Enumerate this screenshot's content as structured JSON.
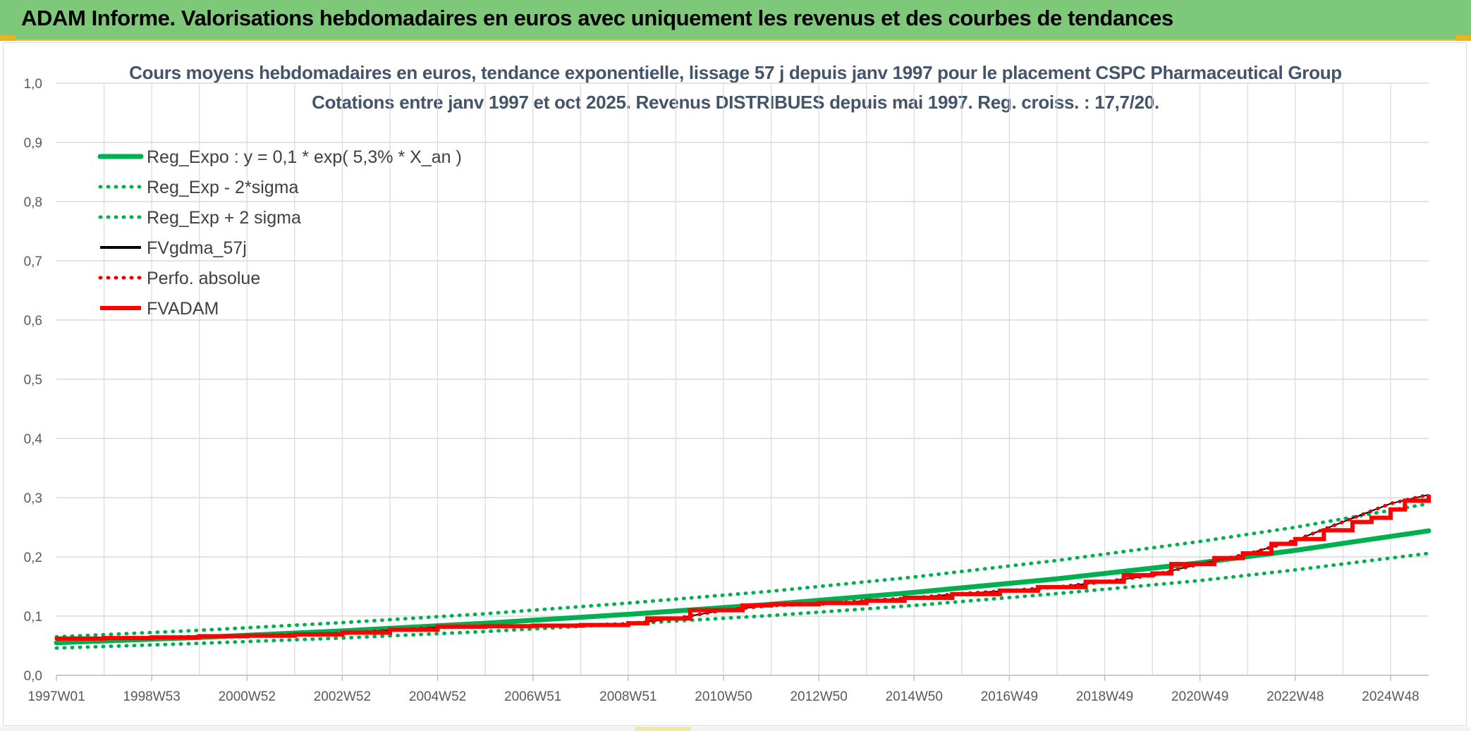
{
  "header": {
    "title": "ADAM Informe. Valorisations hebdomadaires en euros avec uniquement les revenus et des courbes de tendances"
  },
  "colors": {
    "banner": "#7ec87a",
    "trend": "#00b050",
    "fvadam": "#ff0000",
    "fvgdma": "#000000",
    "perfo": "#e00000",
    "grid": "#d9d9d9",
    "title_text": "#44546a"
  },
  "chart_data": {
    "type": "line",
    "title": "Cours moyens hebdomadaires en euros, tendance exponentielle, lissage 57 j depuis janv 1997 pour le placement CSPC Pharmaceutical Group",
    "subtitle": "Cotations entre janv 1997 et oct 2025. Revenus DISTRIBUES depuis mai 1997. Reg. croiss. : 17,7/20.",
    "xlabel": "",
    "ylabel": "",
    "ylim": [
      0,
      1
    ],
    "xlim": [
      1997.0,
      2025.8
    ],
    "grid": true,
    "legend_position": "top-left",
    "y_ticks": [
      "0,0",
      "0,1",
      "0,2",
      "0,3",
      "0,4",
      "0,5",
      "0,6",
      "0,7",
      "0,8",
      "0,9",
      "1,0"
    ],
    "x_ticks": [
      {
        "label": "1997W01",
        "x": 1997.0
      },
      {
        "label": "1998W53",
        "x": 1999.0
      },
      {
        "label": "2000W52",
        "x": 2001.0
      },
      {
        "label": "2002W52",
        "x": 2003.0
      },
      {
        "label": "2004W52",
        "x": 2005.0
      },
      {
        "label": "2006W51",
        "x": 2007.0
      },
      {
        "label": "2008W51",
        "x": 2009.0
      },
      {
        "label": "2010W50",
        "x": 2011.0
      },
      {
        "label": "2012W50",
        "x": 2013.0
      },
      {
        "label": "2014W50",
        "x": 2015.0
      },
      {
        "label": "2016W49",
        "x": 2017.0
      },
      {
        "label": "2018W49",
        "x": 2019.0
      },
      {
        "label": "2020W49",
        "x": 2021.0
      },
      {
        "label": "2022W48",
        "x": 2023.0
      },
      {
        "label": "2024W48",
        "x": 2025.0
      }
    ],
    "series": [
      {
        "name": "Reg_Expo : y = 0,1 * exp( 5,3% *  X_an )",
        "style": "solid-thick",
        "color": "#00b050",
        "x": [
          1997.0,
          2000.0,
          2003.0,
          2006.0,
          2009.0,
          2012.0,
          2015.0,
          2018.0,
          2021.0,
          2023.0,
          2025.8
        ],
        "y": [
          0.055,
          0.064,
          0.075,
          0.088,
          0.103,
          0.12,
          0.14,
          0.163,
          0.19,
          0.211,
          0.244
        ]
      },
      {
        "name": "Reg_Exp - 2*sigma",
        "style": "dotted",
        "color": "#00b050",
        "x": [
          1997.0,
          2000.0,
          2003.0,
          2006.0,
          2009.0,
          2012.0,
          2015.0,
          2018.0,
          2021.0,
          2023.0,
          2025.8
        ],
        "y": [
          0.046,
          0.054,
          0.063,
          0.074,
          0.087,
          0.101,
          0.118,
          0.138,
          0.16,
          0.178,
          0.206
        ]
      },
      {
        "name": "Reg_Exp + 2 sigma",
        "style": "dotted",
        "color": "#00b050",
        "x": [
          1997.0,
          2000.0,
          2003.0,
          2006.0,
          2009.0,
          2012.0,
          2015.0,
          2018.0,
          2021.0,
          2023.0,
          2025.8
        ],
        "y": [
          0.065,
          0.076,
          0.089,
          0.104,
          0.122,
          0.142,
          0.166,
          0.194,
          0.226,
          0.25,
          0.29
        ]
      },
      {
        "name": "FVgdma_57j",
        "style": "solid",
        "color": "#000000",
        "x": [
          1997.0,
          1999.0,
          2001.0,
          2003.0,
          2005.0,
          2007.0,
          2009.0,
          2010.0,
          2011.0,
          2012.0,
          2013.0,
          2014.0,
          2015.0,
          2016.0,
          2017.0,
          2018.0,
          2019.0,
          2020.0,
          2021.0,
          2022.0,
          2023.0,
          2024.0,
          2025.0,
          2025.8
        ],
        "y": [
          0.062,
          0.064,
          0.067,
          0.071,
          0.081,
          0.083,
          0.087,
          0.096,
          0.11,
          0.118,
          0.12,
          0.126,
          0.131,
          0.138,
          0.143,
          0.149,
          0.158,
          0.169,
          0.188,
          0.205,
          0.228,
          0.259,
          0.29,
          0.305
        ]
      },
      {
        "name": "Perfo. absolue",
        "style": "dotted",
        "color": "#e00000",
        "x": [
          1997.0,
          1999.0,
          2001.0,
          2003.0,
          2005.0,
          2007.0,
          2009.0,
          2010.0,
          2011.0,
          2012.0,
          2013.0,
          2014.0,
          2015.0,
          2016.0,
          2017.0,
          2018.0,
          2019.0,
          2020.0,
          2021.0,
          2022.0,
          2023.0,
          2024.0,
          2025.0,
          2025.8
        ],
        "y": [
          0.062,
          0.064,
          0.067,
          0.071,
          0.081,
          0.083,
          0.087,
          0.096,
          0.11,
          0.118,
          0.12,
          0.126,
          0.131,
          0.138,
          0.143,
          0.149,
          0.158,
          0.169,
          0.188,
          0.205,
          0.228,
          0.259,
          0.29,
          0.305
        ]
      },
      {
        "name": "FVADAM",
        "style": "step-thick",
        "color": "#ff0000",
        "x": [
          1997.0,
          1998.0,
          1999.0,
          2000.0,
          2001.0,
          2002.0,
          2003.0,
          2004.0,
          2005.0,
          2006.0,
          2007.0,
          2008.0,
          2009.0,
          2009.4,
          2010.3,
          2011.4,
          2012.0,
          2013.0,
          2014.0,
          2014.8,
          2015.8,
          2016.8,
          2017.6,
          2018.6,
          2019.4,
          2020.0,
          2020.4,
          2021.3,
          2021.9,
          2022.5,
          2023.0,
          2023.6,
          2024.2,
          2024.6,
          2025.0,
          2025.3,
          2025.8
        ],
        "y": [
          0.062,
          0.063,
          0.064,
          0.066,
          0.067,
          0.069,
          0.072,
          0.077,
          0.082,
          0.083,
          0.084,
          0.085,
          0.088,
          0.096,
          0.11,
          0.118,
          0.12,
          0.122,
          0.126,
          0.131,
          0.137,
          0.143,
          0.149,
          0.158,
          0.169,
          0.172,
          0.188,
          0.198,
          0.206,
          0.222,
          0.23,
          0.245,
          0.259,
          0.266,
          0.28,
          0.295,
          0.305
        ]
      }
    ]
  }
}
